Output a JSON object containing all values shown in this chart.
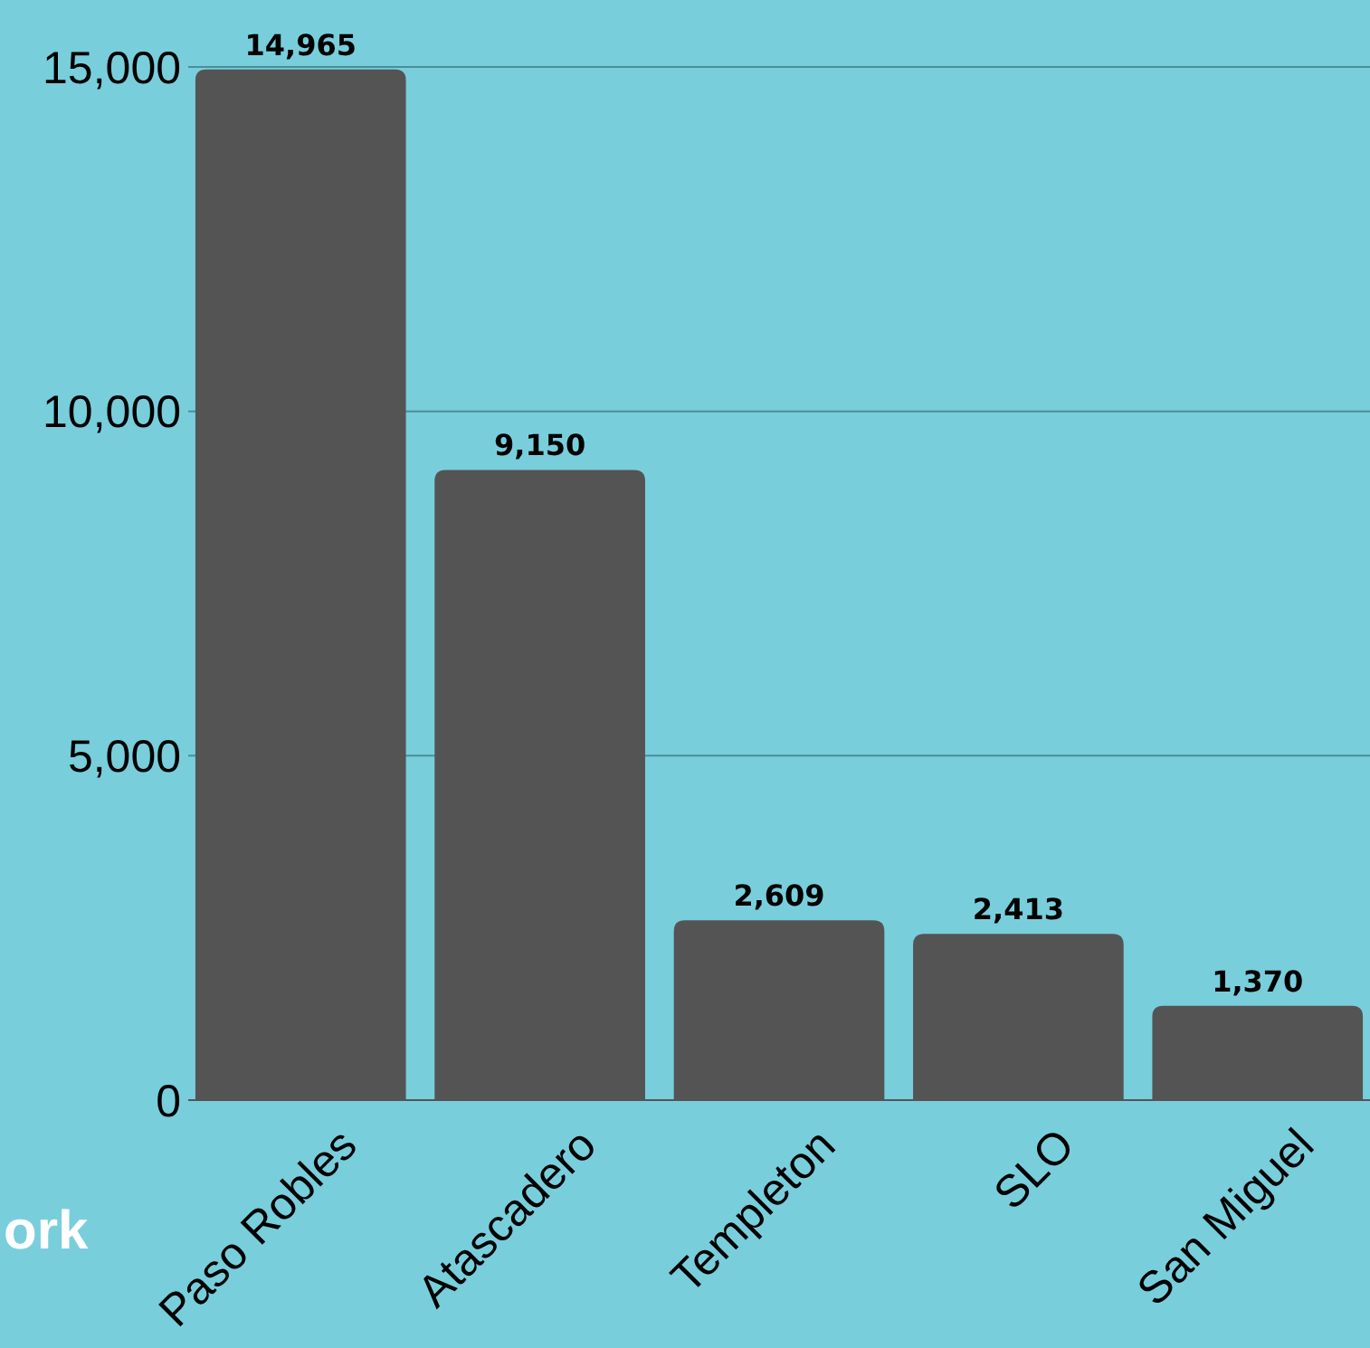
{
  "chart_data": {
    "type": "bar",
    "categories": [
      "Paso Robles",
      "Atascadero",
      "Templeton",
      "SLO",
      "San Miguel"
    ],
    "values": [
      14965,
      9150,
      2609,
      2413,
      1370
    ],
    "color": "#545454",
    "ylim": [
      0,
      15000
    ],
    "yticks": [
      {
        "value": 0,
        "label": "0"
      },
      {
        "value": 5000,
        "label": "5,000"
      },
      {
        "value": 10000,
        "label": "10,000"
      },
      {
        "value": 15000,
        "label": "15,000"
      }
    ],
    "grid": "y",
    "value_labels": [
      "14,965",
      "9,150",
      "2,609",
      "2,413",
      "1,370"
    ],
    "annotations": [
      "ork"
    ]
  }
}
